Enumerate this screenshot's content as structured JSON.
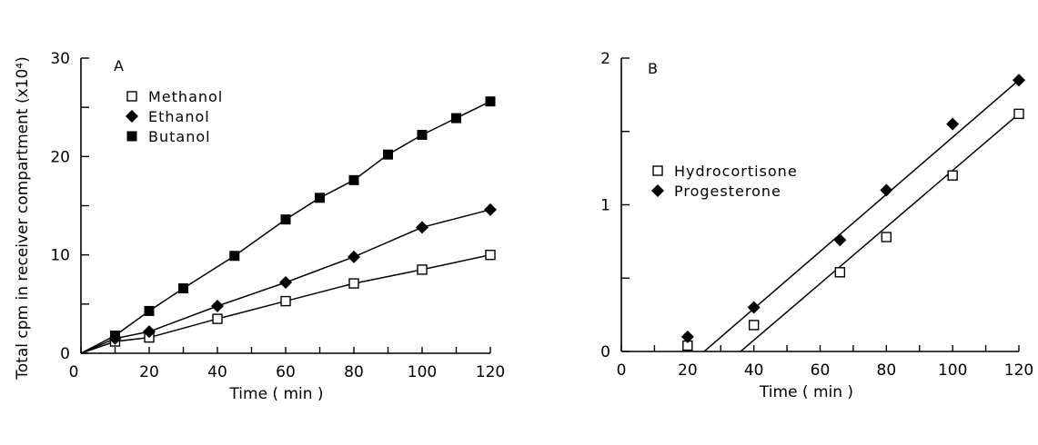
{
  "chart_data": [
    {
      "type": "line",
      "panel_label": "A",
      "xlabel": "Time ( min )",
      "ylabel": "Total cpm in receiver compartment (x10⁴)",
      "xlim": [
        0,
        120
      ],
      "ylim": [
        0,
        30
      ],
      "x_ticks": [
        0,
        20,
        40,
        60,
        80,
        100,
        120
      ],
      "y_ticks": [
        0,
        10,
        20,
        30
      ],
      "legend_position": "top-left",
      "series": [
        {
          "name": "Methanol",
          "marker": "open-square",
          "x": [
            0,
            10,
            20,
            40,
            60,
            80,
            100,
            120
          ],
          "y": [
            0,
            1.2,
            1.6,
            3.5,
            5.3,
            7.1,
            8.5,
            10.0
          ]
        },
        {
          "name": "Ethanol",
          "marker": "filled-diamond",
          "x": [
            0,
            10,
            20,
            40,
            60,
            80,
            100,
            120
          ],
          "y": [
            0,
            1.5,
            2.2,
            4.8,
            7.2,
            9.8,
            12.8,
            14.6
          ]
        },
        {
          "name": "Butanol",
          "marker": "filled-square",
          "x": [
            0,
            10,
            20,
            30,
            45,
            60,
            70,
            80,
            90,
            100,
            110,
            120
          ],
          "y": [
            0,
            1.8,
            4.3,
            6.6,
            9.9,
            13.6,
            15.8,
            17.6,
            20.2,
            22.2,
            23.9,
            25.6
          ]
        }
      ]
    },
    {
      "type": "scatter",
      "panel_label": "B",
      "xlabel": "Time ( min )",
      "xlim": [
        0,
        120
      ],
      "ylim": [
        0,
        2
      ],
      "x_ticks": [
        0,
        20,
        40,
        60,
        80,
        100,
        120
      ],
      "y_ticks": [
        0,
        1,
        2
      ],
      "legend_position": "top-left",
      "series": [
        {
          "name": "Hydrocortisone",
          "marker": "open-square",
          "x": [
            20,
            40,
            66,
            80,
            100,
            120
          ],
          "y": [
            0.04,
            0.18,
            0.54,
            0.78,
            1.2,
            1.62
          ],
          "fit": {
            "x": [
              36,
              120
            ],
            "y": [
              0,
              1.62
            ]
          }
        },
        {
          "name": "Progesterone",
          "marker": "filled-diamond",
          "x": [
            20,
            40,
            66,
            80,
            100,
            120
          ],
          "y": [
            0.1,
            0.3,
            0.76,
            1.1,
            1.55,
            1.85
          ],
          "fit": {
            "x": [
              25,
              120
            ],
            "y": [
              0,
              1.85
            ]
          }
        }
      ]
    }
  ]
}
